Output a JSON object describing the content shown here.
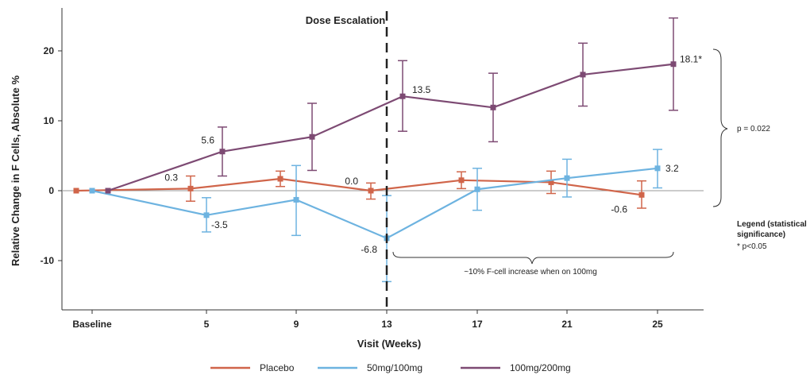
{
  "chart_data": {
    "type": "line",
    "ylabel": "Relative Change in F Cells, Absolute %",
    "xlabel": "Visit (Weeks)",
    "categories": [
      "Baseline",
      "5",
      "9",
      "13",
      "17",
      "21",
      "25"
    ],
    "ylim": [
      -17,
      27
    ],
    "yticks": [
      -10,
      0,
      10,
      20
    ],
    "annotation_dose": "Dose Escalation",
    "series": [
      {
        "name": "Placebo",
        "color": "#d0654a",
        "points": [
          {
            "x": 0,
            "y": 0,
            "lo": 0,
            "hi": 0
          },
          {
            "x": 5,
            "y": 0.3,
            "lo": -1.5,
            "hi": 2.1
          },
          {
            "x": 9,
            "y": 1.7,
            "lo": 0.6,
            "hi": 2.8
          },
          {
            "x": 13,
            "y": 0.0,
            "lo": -1.2,
            "hi": 1.1
          },
          {
            "x": 17,
            "y": 1.5,
            "lo": 0.3,
            "hi": 2.7
          },
          {
            "x": 21,
            "y": 1.2,
            "lo": -0.4,
            "hi": 2.8
          },
          {
            "x": 25,
            "y": -0.6,
            "lo": -2.5,
            "hi": 1.4
          }
        ],
        "data_labels": [
          {
            "index": 1,
            "text": "0.3"
          },
          {
            "index": 3,
            "text": "0.0"
          },
          {
            "index": 6,
            "text": "-0.6"
          }
        ]
      },
      {
        "name": "50mg/100mg",
        "color": "#6db3e0",
        "points": [
          {
            "x": 0,
            "y": 0,
            "lo": 0,
            "hi": 0
          },
          {
            "x": 5,
            "y": -3.5,
            "lo": -5.9,
            "hi": -1.0
          },
          {
            "x": 9,
            "y": -1.3,
            "lo": -6.4,
            "hi": 3.6
          },
          {
            "x": 13,
            "y": -6.8,
            "lo": -13.0,
            "hi": -0.7
          },
          {
            "x": 17,
            "y": 0.2,
            "lo": -2.8,
            "hi": 3.2
          },
          {
            "x": 21,
            "y": 1.8,
            "lo": -0.9,
            "hi": 4.5
          },
          {
            "x": 25,
            "y": 3.2,
            "lo": 0.4,
            "hi": 5.9
          }
        ],
        "data_labels": [
          {
            "index": 4,
            "text": ""
          },
          {
            "index": 1,
            "text": "-3.5"
          },
          {
            "index": 3,
            "text": "-6.8"
          },
          {
            "index": 6,
            "text": "3.2"
          }
        ]
      },
      {
        "name": "100mg/200mg",
        "color": "#7d4a73",
        "points": [
          {
            "x": 0,
            "y": 0,
            "lo": 0,
            "hi": 0
          },
          {
            "x": 5,
            "y": 5.6,
            "lo": 2.1,
            "hi": 9.1
          },
          {
            "x": 9,
            "y": 7.7,
            "lo": 2.9,
            "hi": 12.5
          },
          {
            "x": 13,
            "y": 13.5,
            "lo": 8.5,
            "hi": 18.6
          },
          {
            "x": 17,
            "y": 11.9,
            "lo": 7.0,
            "hi": 16.8
          },
          {
            "x": 21,
            "y": 16.6,
            "lo": 12.1,
            "hi": 21.1
          },
          {
            "x": 25,
            "y": 18.1,
            "lo": 11.5,
            "hi": 24.7
          }
        ],
        "data_labels": [
          {
            "index": 1,
            "text": "5.6"
          },
          {
            "index": 3,
            "text": "13.5"
          },
          {
            "index": 6,
            "text": "18.1*"
          }
        ]
      }
    ],
    "pvalue_text": "p = 0.022",
    "increase_note": "~10% F-cell increase when on 100mg",
    "legend_sig_title": "Legend (statistical significance)",
    "legend_sig_title_line1": "Legend (statistical",
    "legend_sig_title_line2": "significance)",
    "legend_sig_item": "* p<0.05",
    "legend_placement": "bottom"
  }
}
